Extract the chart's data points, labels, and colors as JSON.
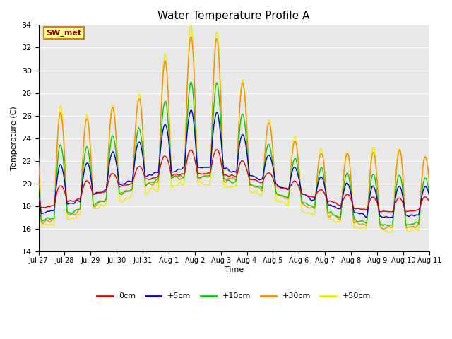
{
  "title": "Water Temperature Profile A",
  "xlabel": "Time",
  "ylabel": "Temperature (C)",
  "ylim": [
    14,
    34
  ],
  "yticks": [
    14,
    16,
    18,
    20,
    22,
    24,
    26,
    28,
    30,
    32,
    34
  ],
  "colors": {
    "0cm": "#dd0000",
    "+5cm": "#0000cc",
    "+10cm": "#00cc00",
    "+30cm": "#ff8800",
    "+50cm": "#eeee00"
  },
  "legend_labels": [
    "0cm",
    "+5cm",
    "+10cm",
    "+30cm",
    "+50cm"
  ],
  "annotation_text": "SW_met",
  "annotation_bg": "#ffff99",
  "annotation_border": "#cc8800",
  "bg_color": "#e8e8e8",
  "tick_labels": [
    "Jul 27",
    "Jul 28",
    "Jul 29",
    "Jul 30",
    "Jul 31",
    "Aug 1",
    "Aug 2",
    "Aug 3",
    "Aug 4",
    "Aug 5",
    "Aug 6",
    "Aug 7",
    "Aug 8",
    "Aug 9",
    "Aug 10",
    "Aug 11"
  ],
  "n_points": 480
}
